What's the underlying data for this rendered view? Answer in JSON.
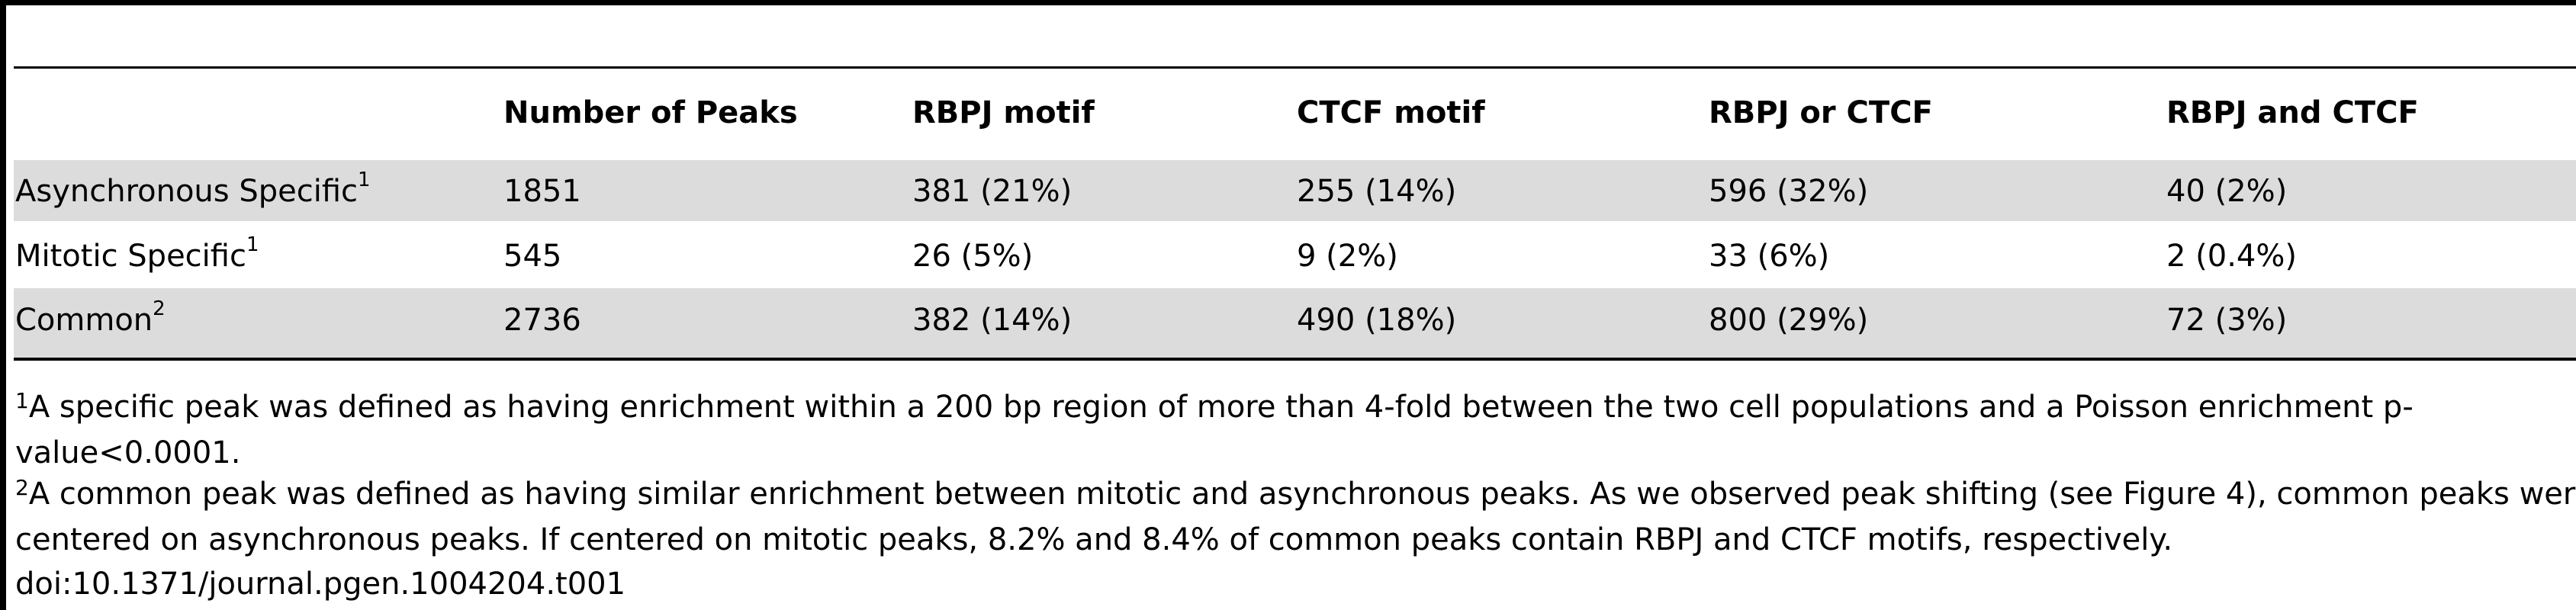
{
  "table": {
    "headers": [
      "",
      "Number of Peaks",
      "RBPJ motif",
      "CTCF motif",
      "RBPJ or CTCF",
      "RBPJ and CTCF"
    ],
    "rows": [
      {
        "label": "Asynchronous Specific",
        "note": "1",
        "cells": [
          "1851",
          "381 (21%)",
          "255 (14%)",
          "596 (32%)",
          "40 (2%)"
        ]
      },
      {
        "label": "Mitotic Specific",
        "note": "1",
        "cells": [
          "545",
          "26 (5%)",
          "9 (2%)",
          "33 (6%)",
          "2 (0.4%)"
        ]
      },
      {
        "label": "Common",
        "note": "2",
        "cells": [
          "2736",
          "382 (14%)",
          "490 (18%)",
          "800 (29%)",
          "72 (3%)"
        ]
      }
    ]
  },
  "footnotes": [
    {
      "mark": "1",
      "lines": [
        "A specific peak was defined as having enrichment within a 200 bp region of more than 4-fold between the two cell populations and a Poisson enrichment p-",
        "value<0.0001."
      ]
    },
    {
      "mark": "2",
      "lines": [
        "A common peak was defined as having similar enrichment between mitotic and asynchronous peaks. As we observed peak shifting (see Figure 4), common peaks were",
        "centered on asynchronous peaks. If centered on mitotic peaks, 8.2% and 8.4% of common peaks contain RBPJ and CTCF motifs, respectively."
      ]
    }
  ],
  "doi": "doi:10.1371/journal.pgen.1004204.t001"
}
